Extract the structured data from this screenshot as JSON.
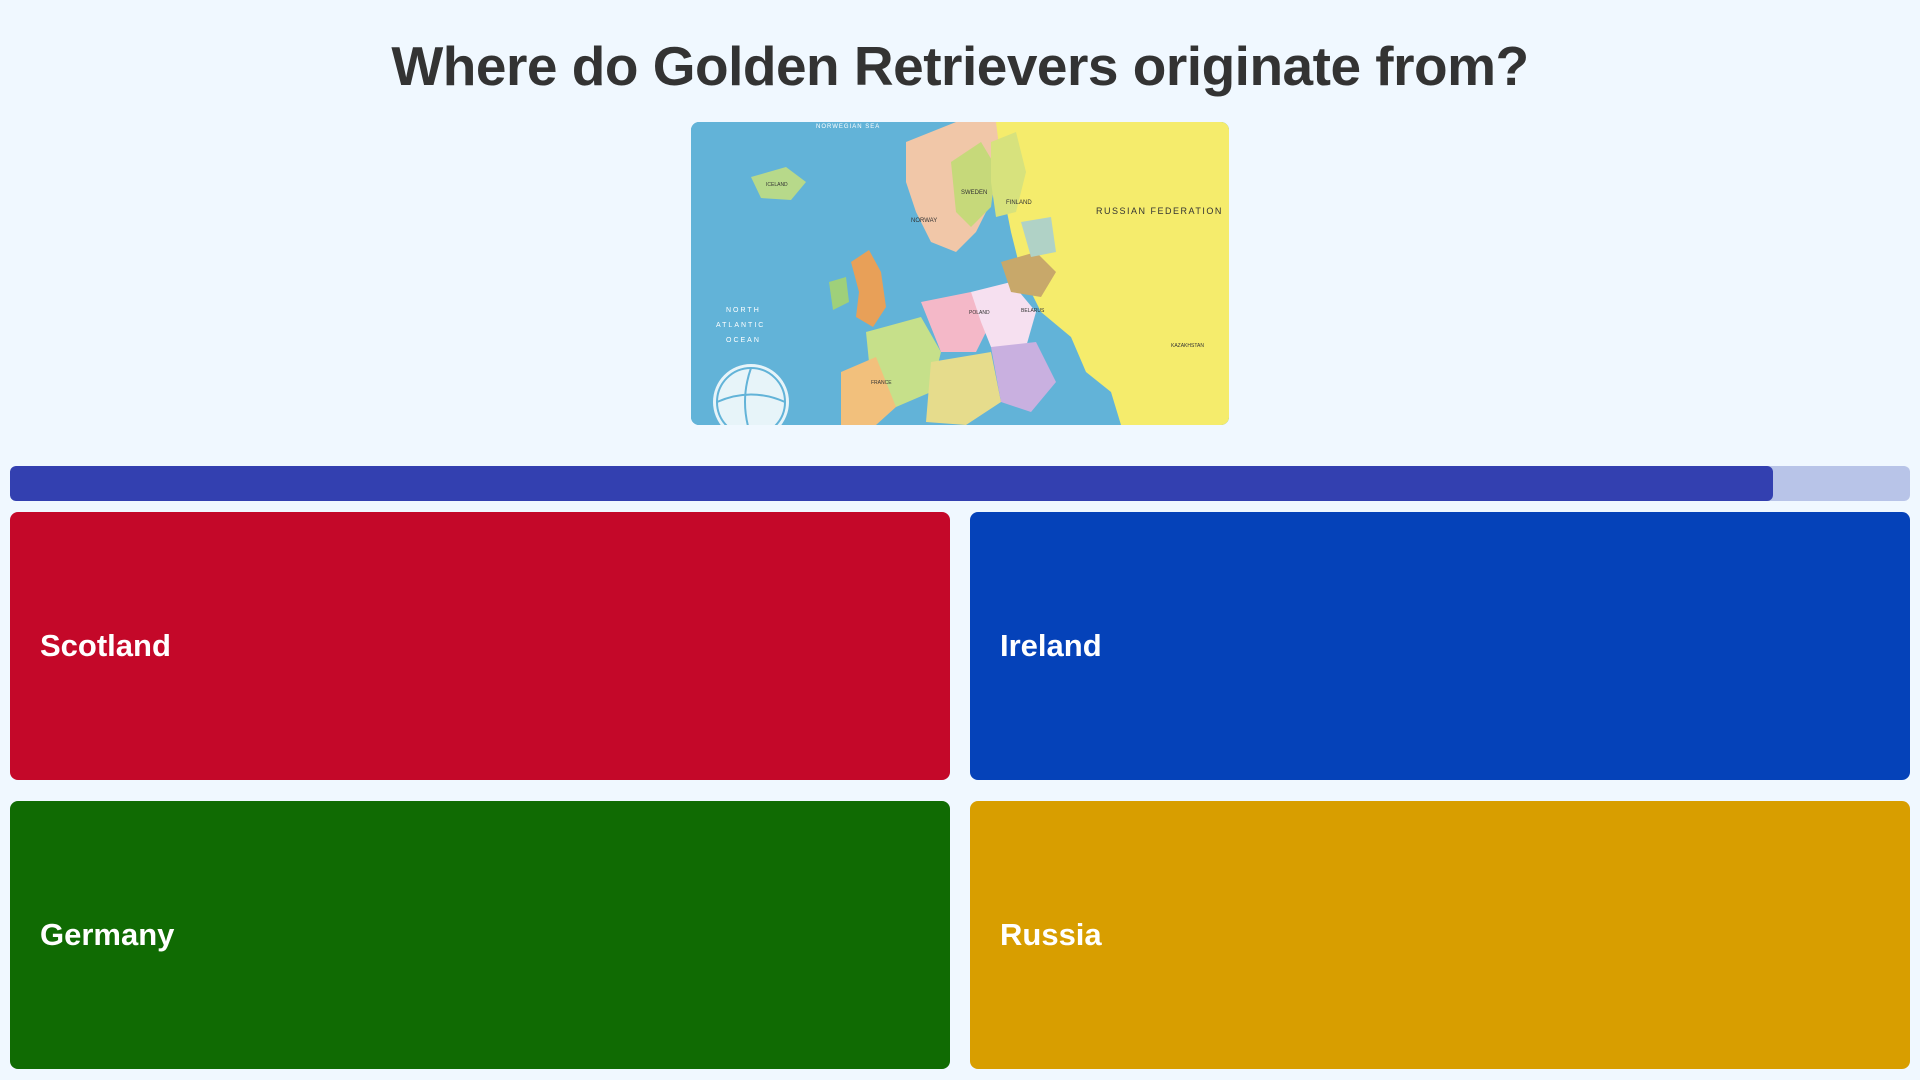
{
  "question": {
    "text": "Where do Golden Retrievers originate from?"
  },
  "image": {
    "map_labels": {
      "russian_federation": "RUSSIAN FEDERATION",
      "norwegian_sea": "NORWEGIAN SEA",
      "north_atlantic_ocean_1": "NORTH",
      "north_atlantic_ocean_2": "ATLANTIC",
      "north_atlantic_ocean_3": "OCEAN",
      "sweden": "SWEDEN",
      "finland": "FINLAND",
      "norway": "NORWAY",
      "iceland": "ICELAND",
      "kazakhstan": "KAZAKHSTAN",
      "belarus": "BELARUS",
      "poland": "POLAND",
      "france": "FRANCE"
    }
  },
  "progress": {
    "fraction": 0.928,
    "fill_color": "#3340b0",
    "track_color": "#b8c4e8"
  },
  "answers": [
    {
      "label": "Scotland",
      "color": "#c40829"
    },
    {
      "label": "Ireland",
      "color": "#0542b9"
    },
    {
      "label": "Germany",
      "color": "#106b03"
    },
    {
      "label": "Russia",
      "color": "#d89e00"
    }
  ]
}
